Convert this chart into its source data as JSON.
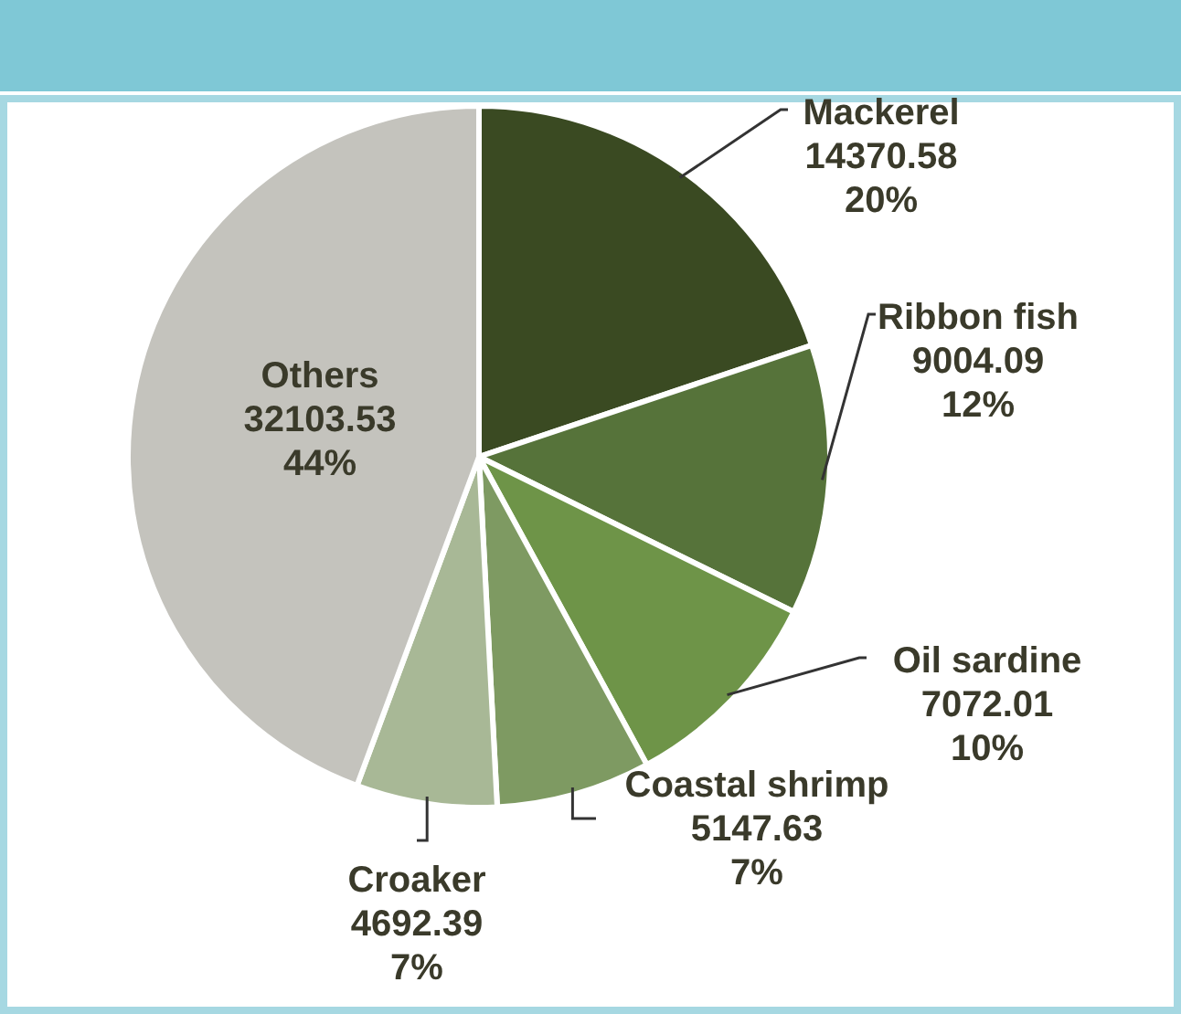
{
  "chart_data": {
    "type": "pie",
    "categories": [
      "Mackerel",
      "Ribbon fish",
      "Oil sardine",
      "Coastal shrimp",
      "Croaker",
      "Others"
    ],
    "values": [
      14370.58,
      9004.09,
      7072.01,
      5147.63,
      4692.39,
      32103.53
    ],
    "value_labels": [
      "14370.58\n20%",
      "9004.09\n12%",
      "7072.01\n10%",
      "5147.63\n7%",
      "4692.39\n7%",
      "32103.53\n44%"
    ],
    "colors": [
      "#3a4a22",
      "#56733a",
      "#6e9448",
      "#7e9a62",
      "#a8b896",
      "#c4c3bd"
    ]
  }
}
